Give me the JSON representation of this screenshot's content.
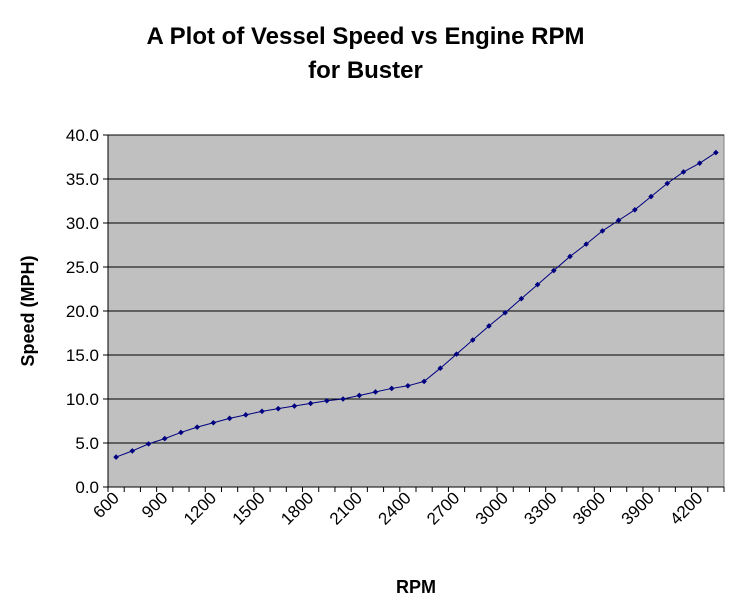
{
  "chart_data": {
    "type": "line",
    "title_lines": [
      "A Plot of Vessel Speed vs Engine RPM",
      "for Buster"
    ],
    "xlabel": "RPM",
    "ylabel": "Speed (MPH)",
    "ylim": [
      0,
      40
    ],
    "y_ticks": [
      "0.0",
      "5.0",
      "10.0",
      "15.0",
      "20.0",
      "25.0",
      "30.0",
      "35.0",
      "40.0"
    ],
    "x_tick_labels": [
      "600",
      "900",
      "1200",
      "1500",
      "1800",
      "2100",
      "2400",
      "2700",
      "3000",
      "3300",
      "3600",
      "3900",
      "4200"
    ],
    "grid": "horizontal",
    "plot_background": "#c0c0c0",
    "series_color": "#000080",
    "series": [
      {
        "x": [
          600,
          700,
          800,
          900,
          1000,
          1100,
          1200,
          1300,
          1400,
          1500,
          1600,
          1700,
          1800,
          1900,
          2000,
          2100,
          2200,
          2300,
          2400,
          2500,
          2600,
          2700,
          2800,
          2900,
          3000,
          3100,
          3200,
          3300,
          3400,
          3500,
          3600,
          3700,
          3800,
          3900,
          4000,
          4100,
          4200,
          4300
        ],
        "values": [
          3.4,
          4.1,
          4.9,
          5.5,
          6.2,
          6.8,
          7.3,
          7.8,
          8.2,
          8.6,
          8.9,
          9.2,
          9.5,
          9.8,
          10.0,
          10.4,
          10.8,
          11.2,
          11.5,
          12.0,
          13.5,
          15.1,
          16.7,
          18.3,
          19.8,
          21.4,
          23.0,
          24.6,
          26.2,
          27.6,
          29.1,
          30.3,
          31.5,
          33.0,
          34.5,
          35.8,
          36.8,
          38.0
        ]
      }
    ]
  }
}
